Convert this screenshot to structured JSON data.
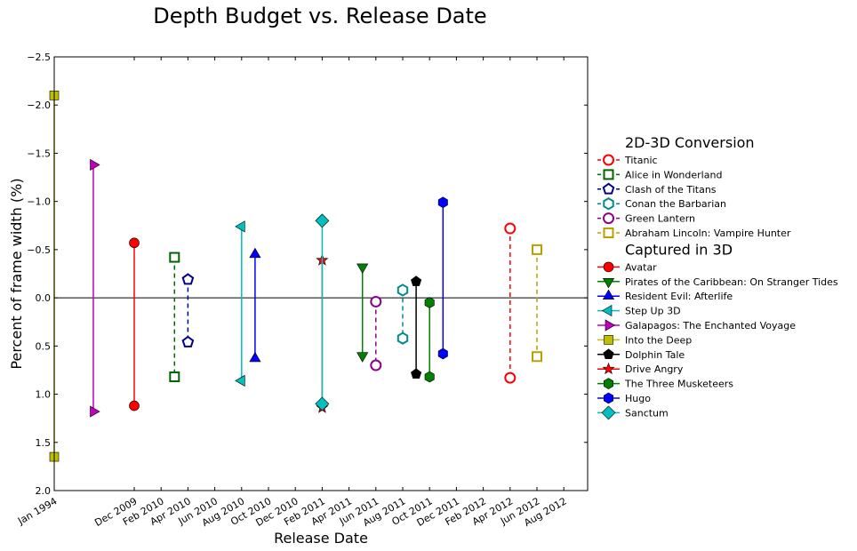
{
  "chart_data": {
    "type": "scatter",
    "title": "Depth Budget vs. Release Date",
    "xlabel": "Release Date",
    "ylabel": "Percent of frame width (%)",
    "ylim": [
      2.0,
      -2.5
    ],
    "y_ticks": [
      "−2.5",
      "−2.0",
      "−1.5",
      "−1.0",
      "−0.5",
      "0.0",
      "0.5",
      "1.0",
      "1.5",
      "2.0"
    ],
    "y_tick_values": [
      -2.5,
      -2.0,
      -1.5,
      -1.0,
      -0.5,
      0.0,
      0.5,
      1.0,
      1.5,
      2.0
    ],
    "x_ticks": [
      "Jan 1994",
      "Dec 2009",
      "Feb 2010",
      "Apr 2010",
      "Jun 2010",
      "Aug 2010",
      "Oct 2010",
      "Dec 2010",
      "Feb 2011",
      "Apr 2011",
      "Jun 2011",
      "Aug 2011",
      "Oct 2011",
      "Dec 2011",
      "Feb 2012",
      "Apr 2012",
      "Jun 2012",
      "Aug 2012"
    ],
    "reference_line_y": 0.0,
    "legend": [
      {
        "title": "2D-3D Conversion",
        "series": [
          {
            "name": "Titanic",
            "color": "#ff0000",
            "marker": "circle",
            "filled": false,
            "dashed": true,
            "x": "Apr 2012",
            "y": [
              -0.72,
              0.83
            ]
          },
          {
            "name": "Alice in Wonderland",
            "color": "#006400",
            "marker": "square",
            "filled": false,
            "dashed": true,
            "x": "Mar 2010",
            "y": [
              -0.42,
              0.82
            ]
          },
          {
            "name": "Clash of the Titans",
            "color": "#00008b",
            "marker": "pentagon",
            "filled": false,
            "dashed": true,
            "x": "Apr 2010",
            "y": [
              -0.19,
              0.46
            ]
          },
          {
            "name": "Conan the Barbarian",
            "color": "#008b8b",
            "marker": "hexagon",
            "filled": false,
            "dashed": true,
            "x": "Aug 2011",
            "y": [
              -0.08,
              0.42
            ]
          },
          {
            "name": "Green Lantern",
            "color": "#8b008b",
            "marker": "circle",
            "filled": false,
            "dashed": true,
            "x": "Jun 2011",
            "y": [
              0.04,
              0.7
            ]
          },
          {
            "name": "Abraham Lincoln: Vampire Hunter",
            "color": "#b8a000",
            "marker": "square",
            "filled": false,
            "dashed": true,
            "x": "Jun 2012",
            "y": [
              -0.5,
              0.61
            ]
          }
        ]
      },
      {
        "title": "Captured in 3D",
        "series": [
          {
            "name": "Avatar",
            "color": "#ff0000",
            "marker": "circle",
            "filled": true,
            "dashed": false,
            "x": "Dec 2009",
            "y": [
              -0.57,
              1.12
            ]
          },
          {
            "name": "Pirates of the Caribbean: On Stranger Tides",
            "color": "#008000",
            "marker": "triangle-down",
            "filled": true,
            "dashed": false,
            "x": "May 2011",
            "y": [
              -0.32,
              0.6
            ]
          },
          {
            "name": "Resident Evil: Afterlife",
            "color": "#0000ff",
            "marker": "triangle-up",
            "filled": true,
            "dashed": false,
            "x": "Sep 2010",
            "y": [
              -0.45,
              0.63
            ]
          },
          {
            "name": "Step Up 3D",
            "color": "#00bfbf",
            "marker": "triangle-left",
            "filled": true,
            "dashed": false,
            "x": "Aug 2010",
            "y": [
              -0.74,
              0.86
            ]
          },
          {
            "name": "Galapagos: The Enchanted Voyage",
            "color": "#bf00bf",
            "marker": "triangle-right",
            "filled": true,
            "dashed": false,
            "x": "Jan 1999",
            "y": [
              -1.38,
              1.18
            ]
          },
          {
            "name": "Into the Deep",
            "color": "#bfbf00",
            "marker": "square",
            "filled": true,
            "dashed": false,
            "x": "Jan 1994",
            "y": [
              -2.1,
              1.65
            ]
          },
          {
            "name": "Dolphin Tale",
            "color": "#000000",
            "marker": "pentagon",
            "filled": true,
            "dashed": false,
            "x": "Sep 2011",
            "y": [
              -0.17,
              0.79
            ]
          },
          {
            "name": "Drive Angry",
            "color": "#ff0000",
            "marker": "star",
            "filled": true,
            "dashed": false,
            "x": "Feb 2011",
            "y": [
              -0.39,
              1.14
            ]
          },
          {
            "name": "The Three Musketeers",
            "color": "#008000",
            "marker": "hexagon",
            "filled": true,
            "dashed": false,
            "x": "Oct 2011",
            "y": [
              0.05,
              0.82
            ]
          },
          {
            "name": "Hugo",
            "color": "#0000ff",
            "marker": "hexagon",
            "filled": true,
            "dashed": false,
            "x": "Nov 2011",
            "y": [
              -0.99,
              0.58
            ]
          },
          {
            "name": "Sanctum",
            "color": "#00bfbf",
            "marker": "diamond",
            "filled": true,
            "dashed": false,
            "x": "Feb 2011",
            "y": [
              -0.8,
              1.1
            ]
          }
        ]
      }
    ]
  }
}
